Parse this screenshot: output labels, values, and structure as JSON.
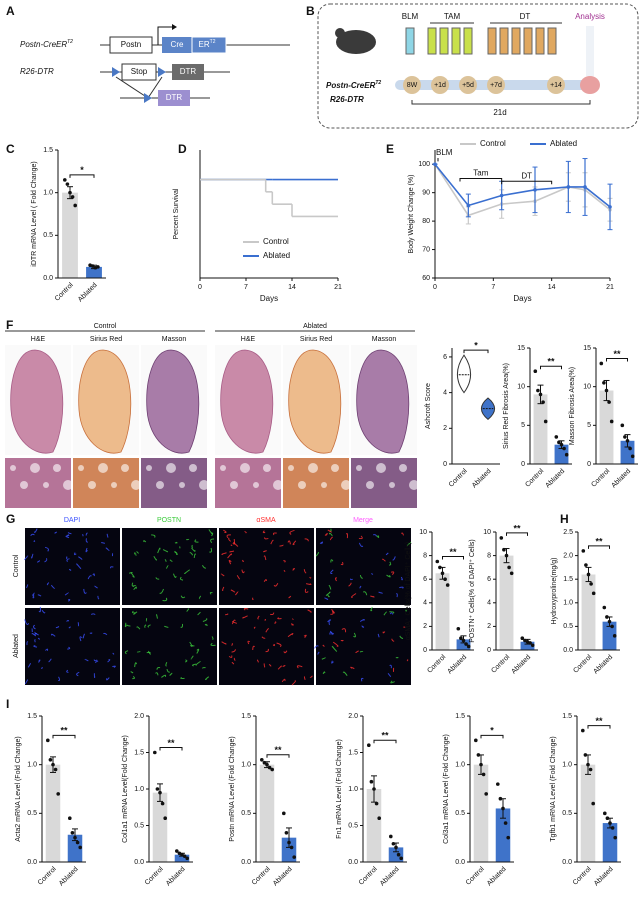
{
  "panels": [
    "A",
    "B",
    "C",
    "D",
    "E",
    "F",
    "G",
    "H",
    "I"
  ],
  "diagram_a": {
    "line1_label": "Postn-CreER",
    "line1_sup": "T2",
    "box_postn": "Postn",
    "box_cre": "Cre",
    "box_er": "ER",
    "box_er_sup": "T2",
    "line2_label": "R26-DTR",
    "box_stop": "Stop",
    "box_dtr": "DTR",
    "box_dtr_recombined": "DTR"
  },
  "diagram_b": {
    "drugs": [
      "BLM",
      "TAM",
      "DT"
    ],
    "analysis": "Analysis",
    "timepoints": [
      "8W",
      "+1d",
      "+5d",
      "+7d",
      "+14"
    ],
    "duration": "21d",
    "mouse_label": "Postn-CreER",
    "mouse_label_sup": "T2",
    "mouse_label2": "R26-DTR"
  },
  "panel_f": {
    "groups": [
      "Control",
      "Ablated"
    ],
    "stains": [
      "H&E",
      "Sirius Red",
      "Masson"
    ]
  },
  "panel_g": {
    "channels": [
      "DAPI",
      "POSTN",
      "αSMA",
      "Merge"
    ],
    "rows": [
      "Control",
      "Ablated"
    ]
  },
  "chart_data": [
    {
      "type": "bar",
      "ylabel": "iDTR mRNA Level ( Fold Change)",
      "categories": [
        "Control",
        "Ablated"
      ],
      "values": [
        1.0,
        0.13
      ],
      "errors": [
        0.07,
        0.02
      ],
      "points": [
        [
          1.15,
          1.1,
          1.0,
          0.95,
          0.85
        ],
        [
          0.15,
          0.14,
          0.12,
          0.13
        ]
      ],
      "colors": [
        "#d9d9d9",
        "#3f73c9"
      ],
      "ylim": [
        0,
        1.5
      ],
      "yticks": [
        {
          "value": 0,
          "label": "0.0"
        },
        0.5,
        {
          "value": 1,
          "label": "1.0"
        },
        1.5
      ],
      "significance": "*"
    },
    {
      "type": "line",
      "step": true,
      "ylabel": "Percent Survival",
      "xlabel": "Days",
      "x": [
        0,
        10,
        11,
        14
      ],
      "series": [
        {
          "name": "Control",
          "color": "#c8c8c8",
          "values": [
            100,
            87.5,
            75,
            62.5
          ]
        },
        {
          "name": "Ablated",
          "color": "#3a6fd0",
          "values": [
            100,
            100,
            100,
            100
          ]
        }
      ],
      "xlim": [
        0,
        21
      ],
      "xticks": [
        0,
        7,
        14,
        21
      ],
      "ylim": [
        0,
        130
      ],
      "legend": "lower right"
    },
    {
      "type": "line",
      "ylabel": "Body Weight Change (%)",
      "xlabel": "Days",
      "x": [
        0,
        4,
        8,
        12,
        16,
        18,
        21
      ],
      "series": [
        {
          "name": "Control",
          "color": "#c8c8c8",
          "values": [
            100,
            82,
            86,
            87,
            92,
            91,
            84
          ],
          "errors": [
            0,
            3,
            5,
            5,
            5,
            6,
            4
          ]
        },
        {
          "name": "Ablated",
          "color": "#3a6fd0",
          "values": [
            100,
            85.5,
            89,
            91,
            92,
            92,
            85
          ],
          "errors": [
            0,
            4,
            5,
            8,
            9,
            10,
            8
          ]
        }
      ],
      "xlim": [
        0,
        21
      ],
      "xticks": [
        0,
        7,
        14,
        21
      ],
      "ylim": [
        60,
        105
      ],
      "yticks": [
        60,
        70,
        80,
        90,
        100
      ],
      "legend": "top",
      "annotations": [
        {
          "text": "BLM",
          "x": 0
        },
        {
          "text": "Tam",
          "start": 3,
          "end": 8
        },
        {
          "text": "DT",
          "start": 8,
          "end": 14
        }
      ]
    },
    {
      "type": "violin",
      "ylabel": "Ashcroft Score",
      "categories": [
        "Control",
        "Ablated"
      ],
      "values": [
        5,
        3.1
      ],
      "ranges": [
        [
          4,
          6.1
        ],
        [
          2.5,
          3.7
        ]
      ],
      "colors": [
        "#ffffff",
        "#3f73c9"
      ],
      "ylim": [
        0,
        6.5
      ],
      "yticks": [
        0,
        2,
        4,
        6
      ],
      "significance": "*"
    },
    {
      "type": "bar",
      "ylabel": "Sirius Red Fibrosis Area(%)",
      "categories": [
        "Control",
        "Ablated"
      ],
      "values": [
        9,
        2.5
      ],
      "errors": [
        1.2,
        0.5
      ],
      "points": [
        [
          12,
          9.5,
          9,
          8,
          5.5
        ],
        [
          3.5,
          2.8,
          2.5,
          2,
          1.2
        ]
      ],
      "colors": [
        "#d9d9d9",
        "#3f73c9"
      ],
      "ylim": [
        0,
        15
      ],
      "yticks": [
        0,
        5,
        10,
        15
      ],
      "significance": "**"
    },
    {
      "type": "bar",
      "ylabel": "Masson Fibrosis Area(%)",
      "categories": [
        "Control",
        "Ablated"
      ],
      "values": [
        9.5,
        3
      ],
      "errors": [
        1.3,
        0.8
      ],
      "points": [
        [
          13,
          10.5,
          9.5,
          8,
          5.5
        ],
        [
          5,
          3.5,
          3,
          2,
          1
        ]
      ],
      "colors": [
        "#d9d9d9",
        "#3f73c9"
      ],
      "ylim": [
        0,
        15
      ],
      "yticks": [
        0,
        5,
        10,
        15
      ],
      "significance": "**"
    },
    {
      "type": "bar",
      "ylabel": "αSMA⁺ Cells(% of DAPI⁺ Cells)",
      "categories": [
        "Control",
        "Ablated"
      ],
      "values": [
        6.5,
        0.9
      ],
      "errors": [
        0.5,
        0.3
      ],
      "points": [
        [
          7.5,
          7,
          6.5,
          6,
          5.5
        ],
        [
          1.8,
          1,
          0.8,
          0.5,
          0.3
        ]
      ],
      "colors": [
        "#d9d9d9",
        "#3f73c9"
      ],
      "ylim": [
        0,
        10
      ],
      "yticks": [
        0,
        2,
        4,
        6,
        8,
        10
      ],
      "significance": "**"
    },
    {
      "type": "bar",
      "ylabel": "POSTN⁺ Cells(% of DAPI⁺ Cells)",
      "categories": [
        "Control",
        "Ablated"
      ],
      "values": [
        8,
        0.7
      ],
      "errors": [
        0.6,
        0.2
      ],
      "points": [
        [
          9.5,
          8.5,
          8,
          7,
          6.5
        ],
        [
          1,
          0.8,
          0.7,
          0.6,
          0.4
        ]
      ],
      "colors": [
        "#d9d9d9",
        "#3f73c9"
      ],
      "ylim": [
        0,
        10
      ],
      "yticks": [
        0,
        2,
        4,
        6,
        8,
        10
      ],
      "significance": "**"
    },
    {
      "type": "bar",
      "ylabel": "Hydroxyproline(mg/g)",
      "categories": [
        "Control",
        "Ablated"
      ],
      "values": [
        1.6,
        0.6
      ],
      "errors": [
        0.15,
        0.1
      ],
      "points": [
        [
          2.1,
          1.8,
          1.6,
          1.4,
          1.2
        ],
        [
          0.9,
          0.7,
          0.6,
          0.5,
          0.3
        ]
      ],
      "colors": [
        "#d9d9d9",
        "#3f73c9"
      ],
      "ylim": [
        0,
        2.5
      ],
      "yticks": [
        {
          "value": 0,
          "label": "0.0"
        },
        0.5,
        {
          "value": 1,
          "label": "1.0"
        },
        1.5,
        {
          "value": 2,
          "label": "2.0"
        },
        2.5
      ],
      "significance": "**"
    },
    {
      "type": "bar",
      "ylabel": "Acta2 mRNA Level (Fold Change)",
      "categories": [
        "Control",
        "Ablated"
      ],
      "values": [
        1.0,
        0.28
      ],
      "errors": [
        0.08,
        0.06
      ],
      "points": [
        [
          1.25,
          1.05,
          1.0,
          0.95,
          0.7
        ],
        [
          0.45,
          0.3,
          0.25,
          0.2,
          0.15
        ]
      ],
      "colors": [
        "#d9d9d9",
        "#3f73c9"
      ],
      "ylim": [
        0,
        1.5
      ],
      "yticks": [
        {
          "value": 0,
          "label": "0.0"
        },
        0.5,
        {
          "value": 1,
          "label": "1.0"
        },
        1.5
      ],
      "significance": "**"
    },
    {
      "type": "bar",
      "ylabel": "Col1a1 mRNA Level(Fold Change)",
      "categories": [
        "Control",
        "Ablated"
      ],
      "values": [
        0.95,
        0.1
      ],
      "errors": [
        0.12,
        0.02
      ],
      "points": [
        [
          1.5,
          1.0,
          0.95,
          0.8,
          0.6
        ],
        [
          0.15,
          0.12,
          0.1,
          0.08,
          0.05
        ]
      ],
      "colors": [
        "#d9d9d9",
        "#3f73c9"
      ],
      "ylim": [
        0,
        2
      ],
      "yticks": [
        {
          "value": 0,
          "label": "0.0"
        },
        0.5,
        {
          "value": 1,
          "label": "1.0"
        },
        1.5,
        {
          "value": 2,
          "label": "2.0"
        }
      ],
      "significance": "**"
    },
    {
      "type": "bar",
      "ylabel": "Postn mRNA Level (Fold Change)",
      "categories": [
        "Control",
        "Ablated"
      ],
      "values": [
        1.0,
        0.25
      ],
      "errors": [
        0.03,
        0.1
      ],
      "points": [
        [
          1.05,
          1.02,
          1.0,
          0.97,
          0.95
        ],
        [
          0.5,
          0.3,
          0.2,
          0.15,
          0.05
        ]
      ],
      "colors": [
        "#d9d9d9",
        "#3f73c9"
      ],
      "ylim": [
        0,
        1.5
      ],
      "yticks": [
        {
          "value": 0,
          "label": "0.0"
        },
        0.5,
        {
          "value": 1,
          "label": "1.0"
        },
        1.5
      ],
      "significance": "**"
    },
    {
      "type": "bar",
      "ylabel": "Fn1 mRNA Level (Fold Change)",
      "categories": [
        "Control",
        "Ablated"
      ],
      "values": [
        1.0,
        0.2
      ],
      "errors": [
        0.18,
        0.06
      ],
      "points": [
        [
          1.6,
          1.1,
          1.0,
          0.8,
          0.6
        ],
        [
          0.35,
          0.25,
          0.2,
          0.1,
          0.05
        ]
      ],
      "colors": [
        "#d9d9d9",
        "#3f73c9"
      ],
      "ylim": [
        0,
        2
      ],
      "yticks": [
        {
          "value": 0,
          "label": "0.0"
        },
        0.5,
        {
          "value": 1,
          "label": "1.0"
        },
        1.5,
        {
          "value": 2,
          "label": "2.0"
        }
      ],
      "significance": "**"
    },
    {
      "type": "bar",
      "ylabel": "Col3a1 mRNA Level (Fold Change)",
      "categories": [
        "Control",
        "Ablated"
      ],
      "values": [
        1.0,
        0.55
      ],
      "errors": [
        0.1,
        0.1
      ],
      "points": [
        [
          1.25,
          1.1,
          1.0,
          0.9,
          0.7
        ],
        [
          0.8,
          0.65,
          0.55,
          0.4,
          0.25
        ]
      ],
      "colors": [
        "#d9d9d9",
        "#3f73c9"
      ],
      "ylim": [
        0,
        1.5
      ],
      "yticks": [
        {
          "value": 0,
          "label": "0.0"
        },
        0.5,
        {
          "value": 1,
          "label": "1.0"
        },
        1.5
      ],
      "significance": "*"
    },
    {
      "type": "bar",
      "ylabel": "Tgfb1 mRNA Level (Fold Change)",
      "categories": [
        "Control",
        "Ablated"
      ],
      "values": [
        1.0,
        0.4
      ],
      "errors": [
        0.1,
        0.05
      ],
      "points": [
        [
          1.35,
          1.1,
          1.0,
          0.95,
          0.6
        ],
        [
          0.5,
          0.45,
          0.4,
          0.35,
          0.25
        ]
      ],
      "colors": [
        "#d9d9d9",
        "#3f73c9"
      ],
      "ylim": [
        0,
        1.5
      ],
      "yticks": [
        {
          "value": 0,
          "label": "0.0"
        },
        0.5,
        {
          "value": 1,
          "label": "1.0"
        },
        1.5
      ],
      "significance": "**"
    }
  ]
}
